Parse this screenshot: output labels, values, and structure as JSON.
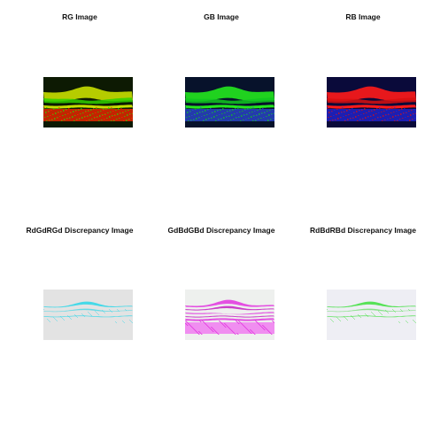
{
  "panels": [
    {
      "id": "rg",
      "title": "RG Image",
      "bg": "#0d1a03",
      "layers": [
        "#c8e000",
        "#2fd000",
        "#ff2a00"
      ],
      "kind": "oct"
    },
    {
      "id": "gb",
      "title": "GB Image",
      "bg": "#07122b",
      "layers": [
        "#24e81e",
        "#10c820",
        "#2e4bd6"
      ],
      "kind": "oct"
    },
    {
      "id": "rb",
      "title": "RB Image",
      "bg": "#0a0a3a",
      "layers": [
        "#ff1a1a",
        "#d81010",
        "#2426d8"
      ],
      "kind": "oct"
    },
    {
      "id": "rgd",
      "title": "RdGdRGd Discrepancy Image",
      "bg": "#e3e3e3",
      "layers": [
        "#33d7e8",
        "#5ad8e6",
        "#c9c9c9"
      ],
      "kind": "diff"
    },
    {
      "id": "gbd",
      "title": "GdBdGBd Discrepancy Image",
      "bg": "#eef0ee",
      "layers": [
        "#e23ee0",
        "#c62bc4",
        "#f07cf0"
      ],
      "kind": "diff2"
    },
    {
      "id": "rbd",
      "title": "RdBdRBd Discrepancy Image",
      "bg": "#eeeef4",
      "layers": [
        "#46e046",
        "#7ee07e",
        "#d0d0e8"
      ],
      "kind": "diff"
    }
  ]
}
